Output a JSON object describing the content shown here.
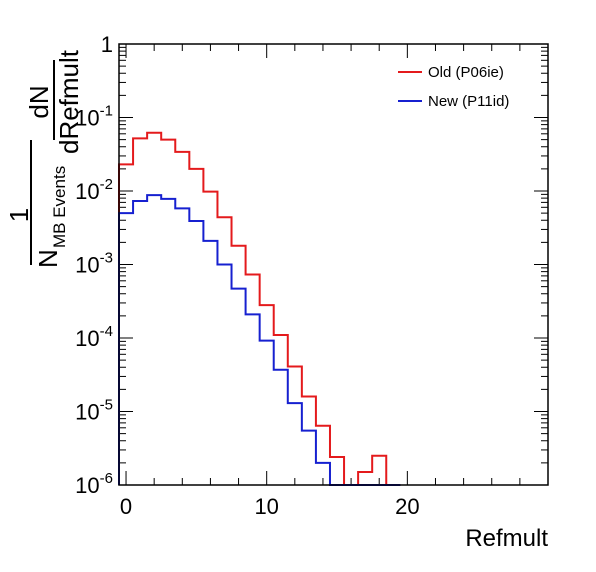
{
  "chart_data": {
    "type": "step-histogram",
    "xlabel": "Refmult",
    "ylabel": {
      "numerator_one": "1",
      "denominator_base": "N",
      "denominator_sub": "MB Events",
      "fraction_top": "dN",
      "fraction_bottom": "dRefmult"
    },
    "xlim": [
      -0.5,
      30
    ],
    "ylim": [
      1e-06,
      1
    ],
    "yscale": "log",
    "x_ticks": [
      {
        "value": 0,
        "label": "0"
      },
      {
        "value": 10,
        "label": "10"
      },
      {
        "value": 20,
        "label": "20"
      }
    ],
    "y_ticks": [
      {
        "value": 1,
        "base": "1",
        "exp": ""
      },
      {
        "value": 0.1,
        "base": "10",
        "exp": "-1"
      },
      {
        "value": 0.01,
        "base": "10",
        "exp": "-2"
      },
      {
        "value": 0.001,
        "base": "10",
        "exp": "-3"
      },
      {
        "value": 0.0001,
        "base": "10",
        "exp": "-4"
      },
      {
        "value": 1e-05,
        "base": "10",
        "exp": "-5"
      },
      {
        "value": 1e-06,
        "base": "10",
        "exp": "-6"
      }
    ],
    "bin_width": 1,
    "bin_edges_start": -0.5,
    "legend_position": "top-right",
    "series": [
      {
        "name": "Old (P06ie)",
        "color": "#e41a1c",
        "values": [
          0.023,
          0.052,
          0.062,
          0.05,
          0.034,
          0.02,
          0.0098,
          0.0044,
          0.0018,
          0.00073,
          0.00028,
          0.00011,
          4.1e-05,
          1.6e-05,
          6.4e-06,
          2.4e-06,
          1e-06,
          1.5e-06,
          2.5e-06,
          1e-06
        ]
      },
      {
        "name": "New (P11id)",
        "color": "#1620d0",
        "values": [
          0.005,
          0.0073,
          0.0088,
          0.0078,
          0.0058,
          0.0039,
          0.0021,
          0.001,
          0.00047,
          0.00021,
          9.2e-05,
          3.7e-05,
          1.3e-05,
          5.5e-06,
          2e-06,
          1e-06,
          1e-06,
          1e-06,
          1e-06,
          1e-06
        ]
      }
    ]
  }
}
